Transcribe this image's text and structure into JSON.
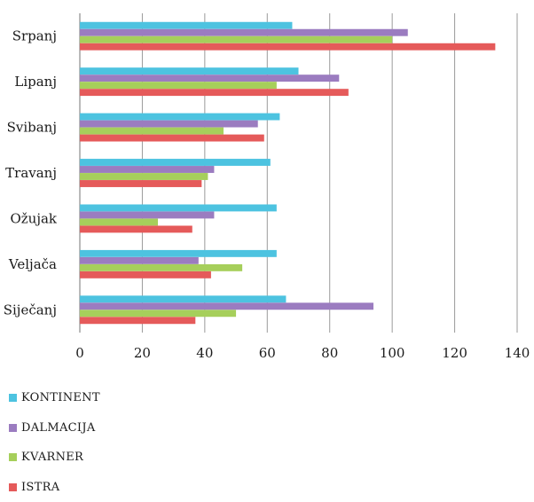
{
  "chart_data": {
    "type": "bar",
    "orientation": "horizontal",
    "categories": [
      "Srpanj",
      "Lipanj",
      "Svibanj",
      "Travanj",
      "Ožujak",
      "Veljača",
      "Siječanj"
    ],
    "series": [
      {
        "name": "KONTINENT",
        "color": "#4dc3e0",
        "values": [
          68,
          70,
          64,
          61,
          63,
          63,
          66
        ]
      },
      {
        "name": "DALMACIJA",
        "color": "#9b7cc0",
        "values": [
          105,
          83,
          57,
          43,
          43,
          38,
          94
        ]
      },
      {
        "name": "KVARNER",
        "color": "#a6cf5b",
        "values": [
          100,
          63,
          46,
          41,
          25,
          52,
          50
        ]
      },
      {
        "name": "ISTRA",
        "color": "#e55a5a",
        "values": [
          133,
          86,
          59,
          39,
          36,
          42,
          37
        ]
      }
    ],
    "xlim": [
      0,
      140
    ],
    "xticks": [
      0,
      20,
      40,
      60,
      80,
      100,
      120,
      140
    ],
    "grid": true,
    "legend": "bottom-left"
  }
}
